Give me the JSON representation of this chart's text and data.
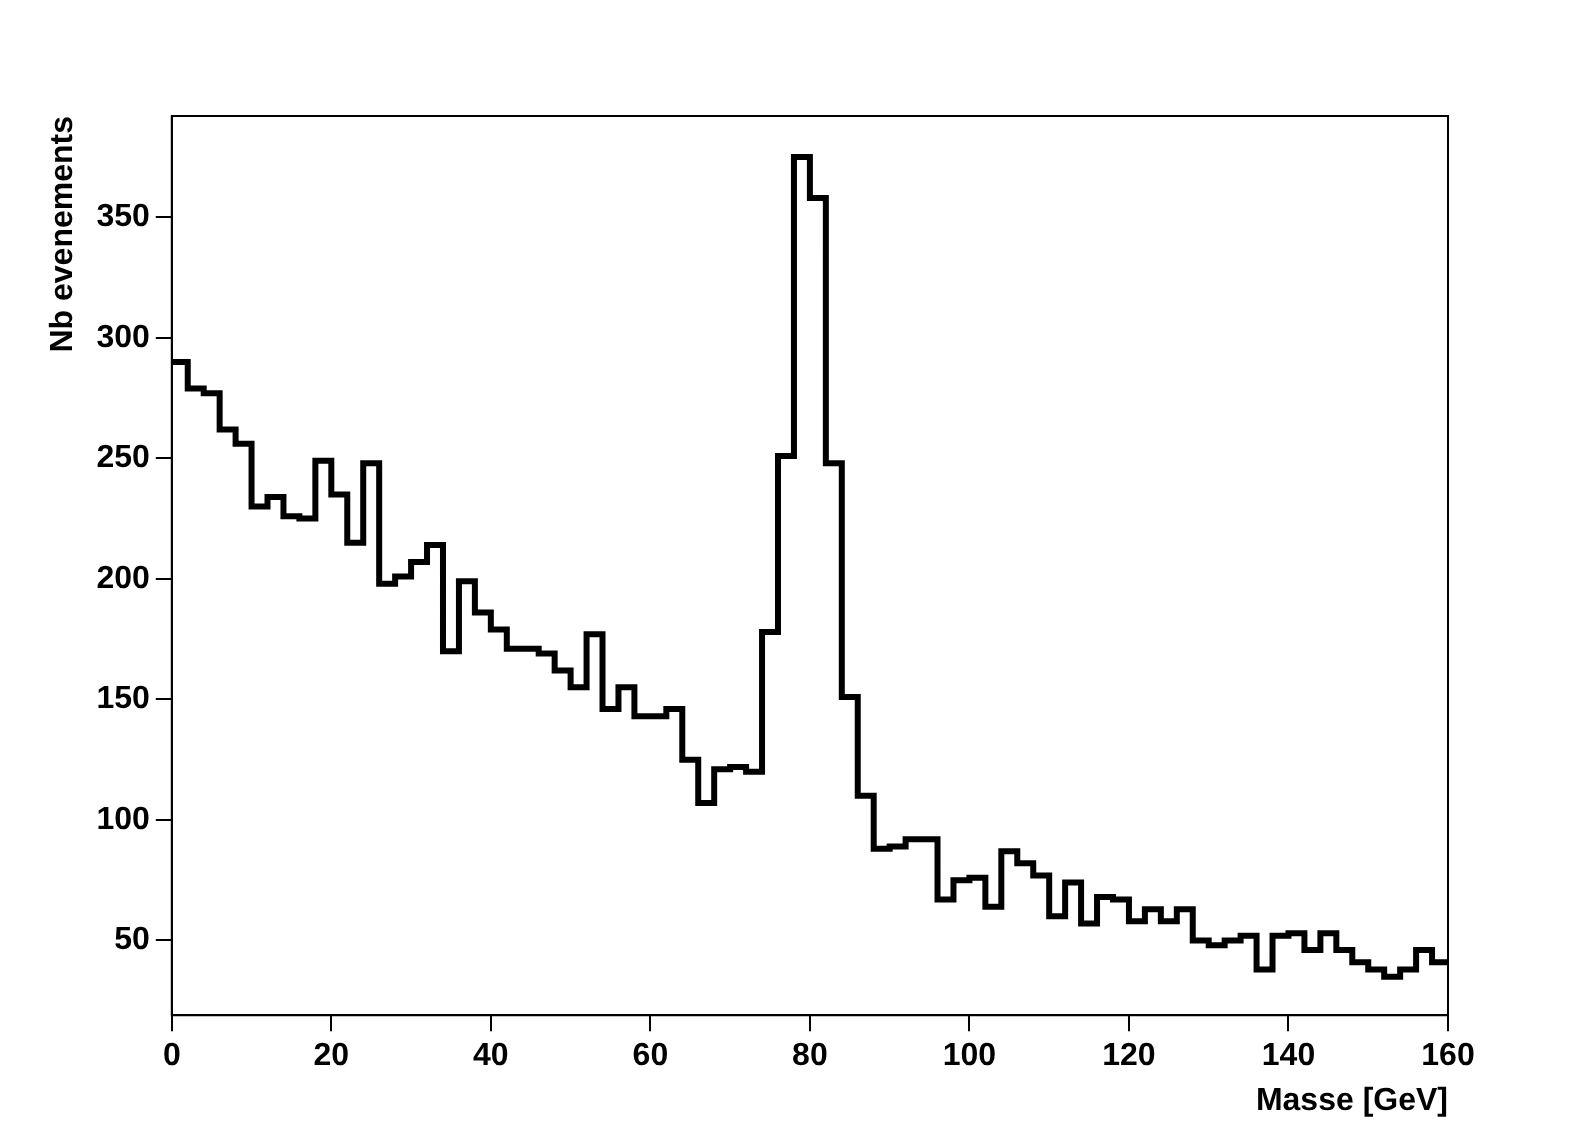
{
  "chart_data": {
    "type": "histogram",
    "xlabel": "Masse [GeV]",
    "ylabel": "Nb evenements",
    "color": "#000000",
    "bins": [
      0,
      2,
      4,
      6,
      8,
      10,
      12,
      14,
      16,
      18,
      20,
      22,
      24,
      26,
      28,
      30,
      32,
      34,
      36,
      38,
      40,
      42,
      44,
      46,
      48,
      50,
      52,
      54,
      56,
      58,
      60,
      62,
      64,
      66,
      68,
      70,
      72,
      74,
      76,
      78,
      80,
      82,
      84,
      86,
      88,
      90,
      92,
      94,
      96,
      98,
      100,
      102,
      104,
      106,
      108,
      110,
      112,
      114,
      116,
      118,
      120,
      122,
      124,
      126,
      128,
      130,
      132,
      134,
      136,
      138,
      140,
      142,
      144,
      146,
      148,
      150,
      152,
      154,
      156,
      158,
      160
    ],
    "values": [
      290,
      279,
      277,
      262,
      256,
      230,
      234,
      226,
      225,
      249,
      235,
      215,
      248,
      198,
      201,
      207,
      214,
      170,
      199,
      186,
      179,
      171,
      171,
      169,
      162,
      155,
      177,
      146,
      155,
      143,
      143,
      146,
      125,
      107,
      121,
      122,
      120,
      178,
      251,
      375,
      358,
      248,
      151,
      110,
      88,
      89,
      92,
      92,
      67,
      75,
      76,
      64,
      87,
      82,
      77,
      60,
      74,
      57,
      68,
      67,
      58,
      63,
      58,
      63,
      50,
      48,
      50,
      52,
      38,
      52,
      53,
      46,
      53,
      46,
      41,
      38,
      35,
      38,
      46,
      41
    ],
    "xlim": [
      0,
      160
    ],
    "xticks": [
      0,
      20,
      40,
      60,
      80,
      100,
      120,
      140,
      160
    ],
    "ylim": [
      19,
      392
    ],
    "yticks": [
      50,
      100,
      150,
      200,
      250,
      300,
      350
    ],
    "grid": false,
    "legend": false
  }
}
